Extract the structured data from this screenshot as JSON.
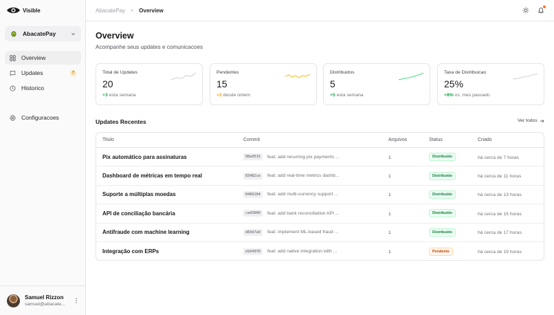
{
  "app": {
    "logo_text": "Visible"
  },
  "workspace": {
    "name": "AbacatePay"
  },
  "sidebar": {
    "items": [
      {
        "label": "Overview",
        "icon": "dashboard-grid-icon",
        "active": true
      },
      {
        "label": "Updates",
        "icon": "message-square-icon",
        "badge": "7"
      },
      {
        "label": "Historico",
        "icon": "clock-icon"
      },
      {
        "label": "Configuracoes",
        "icon": "gear-icon"
      }
    ]
  },
  "user": {
    "name": "Samuel Rizzon",
    "email": "samuel@abacate..."
  },
  "breadcrumb": {
    "parent": "AbacatePay",
    "current": "Overview"
  },
  "page": {
    "title": "Overview",
    "subtitle": "Acompanhe seus updates e comunicacoes"
  },
  "stats": [
    {
      "label": "Total de Updates",
      "value": "20",
      "delta": "+3",
      "delta_color": "#16a34a",
      "period": "esta semana",
      "spark_color": "#d4d4d8"
    },
    {
      "label": "Pendentes",
      "value": "15",
      "delta": "+2",
      "delta_color": "#f59e0b",
      "period": "desde ontem",
      "spark_color": "#fbbf24"
    },
    {
      "label": "Distribuidos",
      "value": "5",
      "delta": "+5",
      "delta_color": "#16a34a",
      "period": "esta semana",
      "spark_color": "#4ade80"
    },
    {
      "label": "Taxa de Distribuicao",
      "value": "25%",
      "delta": "+8%",
      "delta_color": "#16a34a",
      "period": "vs. mes passado",
      "spark_color": "#d4d4d8"
    }
  ],
  "recent": {
    "title": "Updates Recentes",
    "see_all": "Ver todos",
    "columns": [
      "Titulo",
      "Commit",
      "Arquivos",
      "Status",
      "Criado"
    ],
    "rows": [
      {
        "title": "Pix automático para assinaturas",
        "hash": "98a9515",
        "commit": "feat: add recurring pix payments ...",
        "files": "1",
        "status": "Distribuido",
        "status_type": "ok",
        "created": "há cerca de 7 horas"
      },
      {
        "title": "Dashboard de métricas em tempo real",
        "hash": "83482ce",
        "commit": "feat: add real-time metrics dashb...",
        "files": "1",
        "status": "Distribuido",
        "status_type": "ok",
        "created": "há cerca de 11 horas"
      },
      {
        "title": "Suporte a múltiplas moedas",
        "hash": "0489104",
        "commit": "feat: add multi-currency support ...",
        "files": "1",
        "status": "Distribuido",
        "status_type": "ok",
        "created": "há cerca de 13 horas"
      },
      {
        "title": "API de conciliação bancária",
        "hash": "ca43800",
        "commit": "feat: add bank reconciliation API ...",
        "files": "1",
        "status": "Distribuido",
        "status_type": "ok",
        "created": "há cerca de 15 horas"
      },
      {
        "title": "Antifraude com machine learning",
        "hash": "d83d7a9",
        "commit": "feat: implement ML-based fraud ...",
        "files": "1",
        "status": "Distribuido",
        "status_type": "ok",
        "created": "há cerca de 17 horas"
      },
      {
        "title": "Integração com ERPs",
        "hash": "d164078",
        "commit": "feat: add native integration with ...",
        "files": "1",
        "status": "Pendente",
        "status_type": "pend",
        "created": "há cerca de 19 horas"
      }
    ]
  }
}
